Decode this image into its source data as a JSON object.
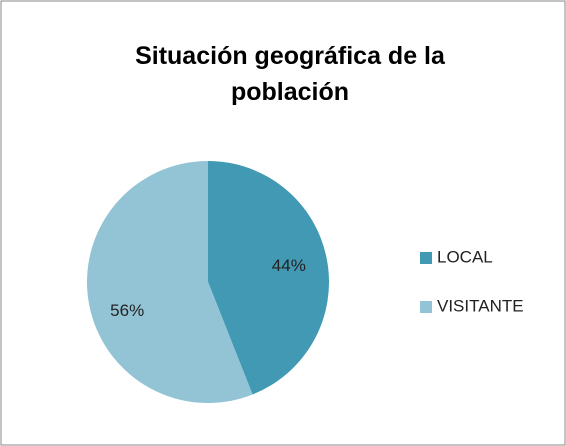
{
  "chart_data": {
    "type": "pie",
    "title": "Situación geográfica de la población",
    "categories": [
      "LOCAL",
      "VISITANTE"
    ],
    "values": [
      44,
      56
    ],
    "value_labels": [
      "44%",
      "56%"
    ],
    "colors": [
      "#4299b3",
      "#93c4d6"
    ],
    "legend": "right"
  }
}
